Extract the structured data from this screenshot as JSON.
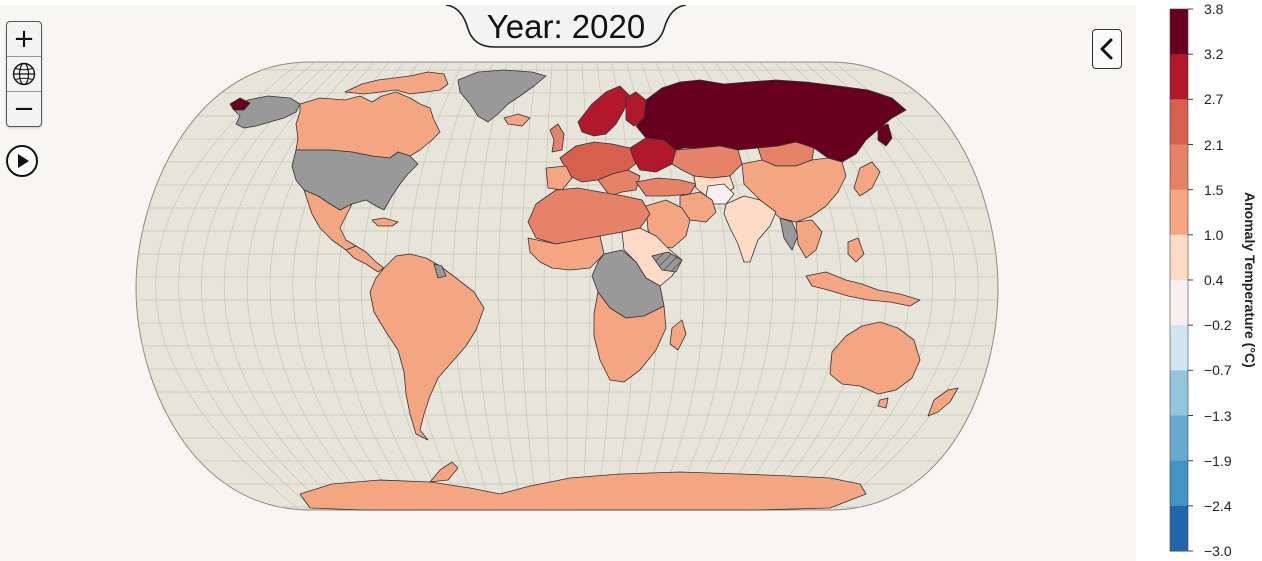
{
  "map": {
    "title_prefix": "Year: ",
    "year": "2020",
    "year_text": "Year: 2020",
    "projection": "Natural Earth",
    "ocean_color": "#e7e4da",
    "no_data_color": "#999999",
    "border_color": "#333333"
  },
  "controls": {
    "zoom_in_label": "+",
    "reset_icon": "globe-icon",
    "zoom_out_label": "−",
    "play_icon": "play-icon",
    "collapse_icon": "chevron-left-icon"
  },
  "legend": {
    "title": "Anomaly Temperature (°C)",
    "ticks": [
      "3.8",
      "3.2",
      "2.7",
      "2.1",
      "1.5",
      "1.0",
      "0.4",
      "−0.2",
      "−0.7",
      "−1.3",
      "−1.9",
      "−2.4",
      "−3.0"
    ],
    "colors": [
      "#67001f",
      "#b2182b",
      "#d6604d",
      "#e58267",
      "#f4a582",
      "#fddbc7",
      "#f7f0ee",
      "#d1e5f0",
      "#92c5de",
      "#6aa8d0",
      "#4393c3",
      "#2166ac",
      "#053061"
    ]
  },
  "chart_data": {
    "type": "choropleth",
    "year": 2020,
    "variable": "Anomaly Temperature (°C)",
    "scale": {
      "min": -3.0,
      "max": 3.8
    },
    "regions": [
      {
        "region": "Russia",
        "bin": "3.2 to 3.8"
      },
      {
        "region": "Finland",
        "bin": "2.7 to 3.2"
      },
      {
        "region": "Baltic states",
        "bin": "2.7 to 3.2"
      },
      {
        "region": "Ukraine",
        "bin": "2.7 to 3.2"
      },
      {
        "region": "Central Europe",
        "bin": "2.1 to 2.7"
      },
      {
        "region": "Kazakhstan",
        "bin": "1.5 to 2.1"
      },
      {
        "region": "Mongolia",
        "bin": "1.5 to 2.1"
      },
      {
        "region": "Algeria",
        "bin": "1.5 to 2.1"
      },
      {
        "region": "China",
        "bin": "1.0 to 1.5"
      },
      {
        "region": "Canada",
        "bin": "1.0 to 1.5"
      },
      {
        "region": "South America",
        "bin": "1.0 to 1.5"
      },
      {
        "region": "Australia",
        "bin": "1.0 to 1.5"
      },
      {
        "region": "Antarctica",
        "bin": "1.0 to 1.5"
      },
      {
        "region": "India",
        "bin": "0.4 to 1.0"
      },
      {
        "region": "Afghanistan",
        "bin": "-0.2 to 0.4"
      },
      {
        "region": "United States",
        "bin": "no data"
      },
      {
        "region": "Greenland",
        "bin": "no data"
      },
      {
        "region": "Alaska",
        "bin": "no data"
      }
    ]
  }
}
